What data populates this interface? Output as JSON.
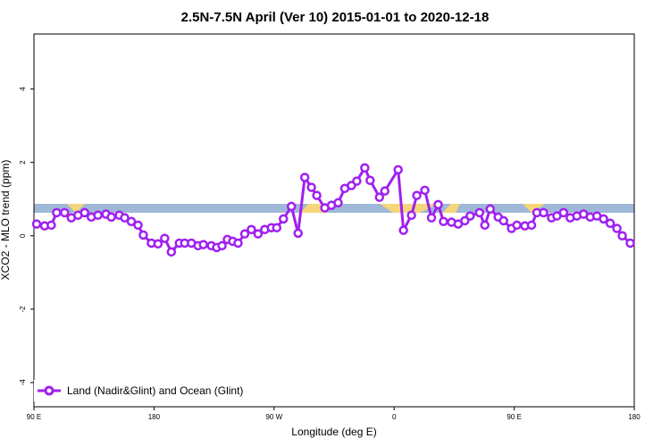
{
  "chart_data": {
    "type": "line",
    "title": "2.5N-7.5N April (Ver 10)   2015-01-01 to 2020-12-18",
    "x_label": "Longitude (deg E)",
    "y_label": "XCO2 - MLO trend (ppm)",
    "xlim": [
      90,
      540
    ],
    "ylim": [
      -4.66,
      5.5
    ],
    "xticks": [
      {
        "value": 90,
        "label": "90 E"
      },
      {
        "value": 180,
        "label": "180"
      },
      {
        "value": 270,
        "label": "90 W"
      },
      {
        "value": 360,
        "label": "0"
      },
      {
        "value": 450,
        "label": "90 E"
      },
      {
        "value": 540,
        "label": "180"
      }
    ],
    "yticks": [
      -4,
      -2,
      0,
      2,
      4
    ],
    "legend_position": "bottom-left",
    "x": [
      92,
      98,
      103,
      107,
      113,
      118,
      123,
      128,
      133,
      138,
      144,
      148,
      154,
      158,
      163,
      168,
      172,
      178,
      183,
      188,
      193,
      199,
      203,
      208,
      213,
      217,
      223,
      227,
      231,
      235,
      239,
      243,
      248,
      253,
      258,
      263,
      268,
      272,
      277,
      283,
      288,
      293,
      298,
      302,
      308,
      313,
      318,
      323,
      328,
      332,
      338,
      342,
      349,
      353,
      363,
      367,
      373,
      377,
      383,
      388,
      393,
      397,
      403,
      408,
      413,
      417,
      424,
      428,
      432,
      438,
      442,
      448,
      452,
      458,
      463,
      467,
      472,
      478,
      482,
      487,
      492,
      497,
      502,
      507,
      512,
      517,
      522,
      527,
      531,
      537
    ],
    "series": [
      {
        "name": "Land (Nadir&Glint) and Ocean (Glint)",
        "color": "#a020f0",
        "values": [
          0.32,
          0.27,
          0.29,
          0.63,
          0.63,
          0.49,
          0.56,
          0.63,
          0.51,
          0.56,
          0.59,
          0.51,
          0.56,
          0.49,
          0.39,
          0.29,
          0.02,
          -0.2,
          -0.22,
          -0.07,
          -0.44,
          -0.2,
          -0.2,
          -0.2,
          -0.27,
          -0.24,
          -0.27,
          -0.32,
          -0.27,
          -0.1,
          -0.15,
          -0.2,
          0.05,
          0.17,
          0.05,
          0.17,
          0.22,
          0.22,
          0.46,
          0.8,
          0.07,
          1.59,
          1.32,
          1.1,
          0.76,
          0.83,
          0.9,
          1.29,
          1.37,
          1.49,
          1.85,
          1.51,
          1.05,
          1.22,
          1.8,
          0.15,
          0.56,
          1.1,
          1.24,
          0.49,
          0.85,
          0.39,
          0.37,
          0.32,
          0.41,
          0.54,
          0.63,
          0.29,
          0.73,
          0.51,
          0.41,
          0.2,
          0.29,
          0.27,
          0.29,
          0.63,
          0.63,
          0.49,
          0.54,
          0.63,
          0.49,
          0.54,
          0.59,
          0.51,
          0.54,
          0.46,
          0.34,
          0.2,
          0,
          -0.2
        ]
      }
    ]
  }
}
